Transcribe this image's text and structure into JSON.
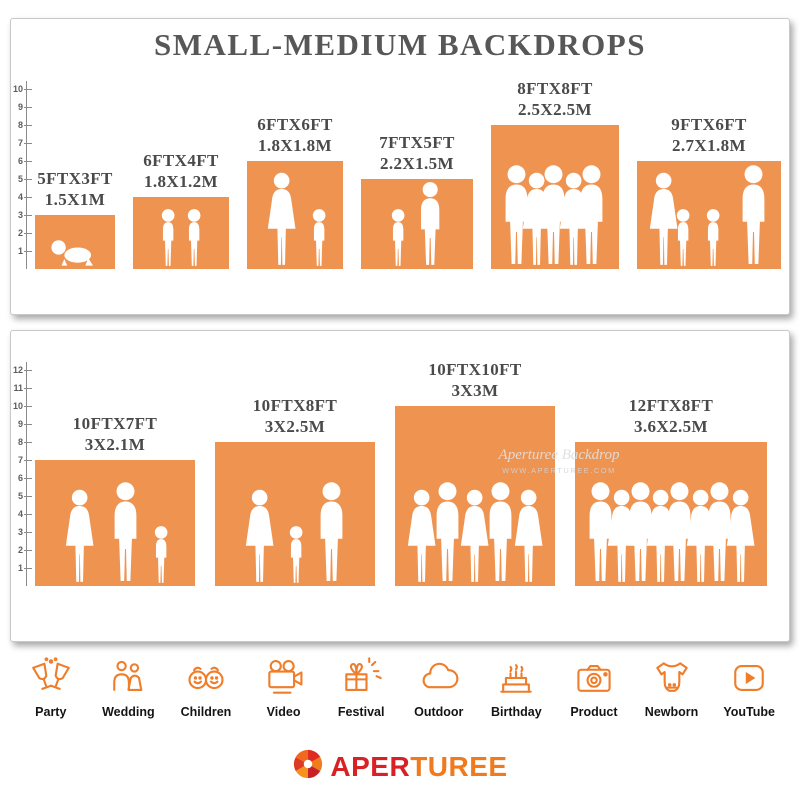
{
  "title": "SMALL-MEDIUM BACKDROPS",
  "colors": {
    "orange": "#EF9351",
    "icon_orange": "#EF7D2A",
    "label_gray": "#4A4A4A",
    "ruler_gray": "#8A8A8A",
    "logo_red": "#D92025",
    "logo_orange": "#F07A1E"
  },
  "watermark": {
    "line1": "Aperturee Backdrop",
    "line2": "WWW.APERTUREE.COM"
  },
  "logo": {
    "part1": "APER",
    "part2": "TUREE",
    "full": "APERTUREE"
  },
  "panels": [
    {
      "name": "small",
      "ruler": {
        "min": 1,
        "max": 10,
        "unit": "ft"
      },
      "items": [
        {
          "ft_label": "5FTX3FT",
          "m_label": "1.5X1M",
          "width_ft": 5,
          "height_ft": 3,
          "figures": [
            "baby"
          ]
        },
        {
          "ft_label": "6FTX4FT",
          "m_label": "1.8X1.2M",
          "width_ft": 6,
          "height_ft": 4,
          "figures": [
            "child",
            "child"
          ]
        },
        {
          "ft_label": "6FTX6FT",
          "m_label": "1.8X1.8M",
          "width_ft": 6,
          "height_ft": 6,
          "figures": [
            "female",
            "child"
          ]
        },
        {
          "ft_label": "7FTX5FT",
          "m_label": "2.2X1.5M",
          "width_ft": 7,
          "height_ft": 5,
          "figures": [
            "child",
            "male"
          ]
        },
        {
          "ft_label": "8FTX8FT",
          "m_label": "2.5X2.5M",
          "width_ft": 8,
          "height_ft": 8,
          "figures": [
            "male",
            "female",
            "male",
            "female",
            "male"
          ]
        },
        {
          "ft_label": "9FTX6FT",
          "m_label": "2.7X1.8M",
          "width_ft": 9,
          "height_ft": 6,
          "figures": [
            "female",
            "child",
            "child",
            "male"
          ]
        }
      ]
    },
    {
      "name": "medium",
      "ruler": {
        "min": 1,
        "max": 12,
        "unit": "ft"
      },
      "items": [
        {
          "ft_label": "10FTX7FT",
          "m_label": "3X2.1M",
          "width_ft": 10,
          "height_ft": 7,
          "figures": [
            "female",
            "male",
            "child"
          ]
        },
        {
          "ft_label": "10FTX8FT",
          "m_label": "3X2.5M",
          "width_ft": 10,
          "height_ft": 8,
          "figures": [
            "female",
            "child",
            "male"
          ]
        },
        {
          "ft_label": "10FTX10FT",
          "m_label": "3X3M",
          "width_ft": 10,
          "height_ft": 10,
          "figures": [
            "female",
            "male",
            "female",
            "male",
            "female"
          ]
        },
        {
          "ft_label": "12FTX8FT",
          "m_label": "3.6X2.5M",
          "width_ft": 12,
          "height_ft": 8,
          "figures": [
            "male",
            "female",
            "male",
            "female",
            "male",
            "female",
            "male",
            "female"
          ]
        }
      ]
    }
  ],
  "categories": [
    {
      "label": "Party",
      "icon": "party"
    },
    {
      "label": "Wedding",
      "icon": "wedding"
    },
    {
      "label": "Children",
      "icon": "children"
    },
    {
      "label": "Video",
      "icon": "video"
    },
    {
      "label": "Festival",
      "icon": "festival"
    },
    {
      "label": "Outdoor",
      "icon": "outdoor"
    },
    {
      "label": "Birthday",
      "icon": "birthday"
    },
    {
      "label": "Product",
      "icon": "product"
    },
    {
      "label": "Newborn",
      "icon": "newborn"
    },
    {
      "label": "YouTube",
      "icon": "youtube"
    }
  ],
  "chart_data": [
    {
      "type": "bar",
      "title": "SMALL-MEDIUM BACKDROPS",
      "categories": [
        "5FTX3FT",
        "6FTX4FT",
        "6FTX6FT",
        "7FTX5FT",
        "8FTX8FT",
        "9FTX6FT"
      ],
      "series": [
        {
          "name": "width_ft",
          "values": [
            5,
            6,
            6,
            7,
            8,
            9
          ]
        },
        {
          "name": "height_ft",
          "values": [
            3,
            4,
            6,
            5,
            8,
            6
          ]
        }
      ],
      "metric_labels": [
        "1.5X1M",
        "1.8X1.2M",
        "1.8X1.8M",
        "2.2X1.5M",
        "2.5X2.5M",
        "2.7X1.8M"
      ],
      "xlabel": "",
      "ylabel": "feet",
      "ylim": [
        0,
        10
      ],
      "grid": false,
      "legend_position": "none",
      "note": "rectangles drawn to scale against a 1-10 ft ruler"
    },
    {
      "type": "bar",
      "title": "",
      "categories": [
        "10FTX7FT",
        "10FTX8FT",
        "10FTX10FT",
        "12FTX8FT"
      ],
      "series": [
        {
          "name": "width_ft",
          "values": [
            10,
            10,
            10,
            12
          ]
        },
        {
          "name": "height_ft",
          "values": [
            7,
            8,
            10,
            8
          ]
        }
      ],
      "metric_labels": [
        "3X2.1M",
        "3X2.5M",
        "3X3M",
        "3.6X2.5M"
      ],
      "xlabel": "",
      "ylabel": "feet",
      "ylim": [
        0,
        12
      ],
      "grid": false,
      "legend_position": "none",
      "note": "rectangles drawn to scale against a 1-12 ft ruler"
    }
  ]
}
